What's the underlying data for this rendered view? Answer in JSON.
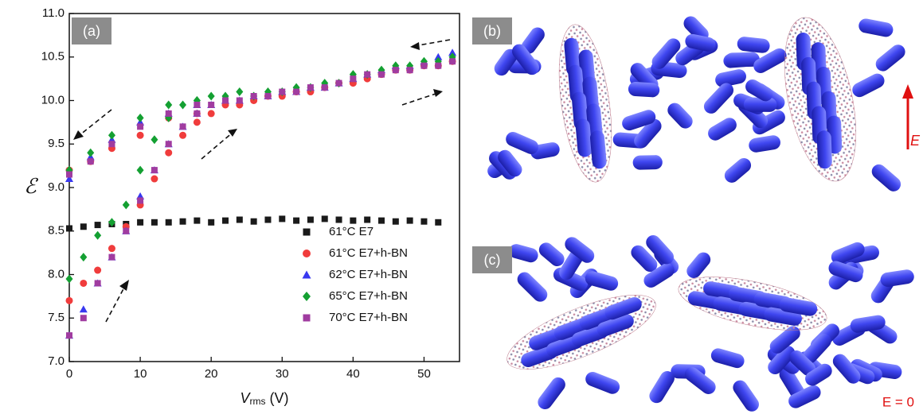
{
  "chart_data": {
    "type": "scatter",
    "y_label": "ℰ",
    "x_label": {
      "symbol": "V",
      "sub": "rms",
      "unit": " (V)"
    },
    "panel_labels": [
      "(a)",
      "(b)",
      "(c)"
    ],
    "field_labels": {
      "on": "E",
      "off": "E = 0"
    },
    "xlim": [
      0,
      55
    ],
    "xticks": [
      0,
      10,
      20,
      30,
      40,
      50
    ],
    "ylim": [
      7,
      11
    ],
    "yticks": [
      {
        "value": 7,
        "label": "7.0"
      },
      7.5,
      {
        "value": 8,
        "label": "8.0"
      },
      8.5,
      {
        "value": 9,
        "label": "9.0"
      },
      9.5,
      {
        "value": 10,
        "label": "10.0"
      },
      10.5,
      {
        "value": 11,
        "label": "11.0"
      }
    ],
    "legend": "lower right",
    "series": [
      {
        "name": "61°C E7",
        "color": "#1a1a1a",
        "marker": "square",
        "x": [
          0,
          2,
          4,
          6,
          8,
          10,
          12,
          14,
          16,
          18,
          20,
          22,
          24,
          26,
          28,
          30,
          32,
          34,
          36,
          38,
          40,
          42,
          44,
          46,
          48,
          50,
          52
        ],
        "y": [
          8.53,
          8.55,
          8.57,
          8.58,
          8.58,
          8.6,
          8.6,
          8.6,
          8.61,
          8.62,
          8.6,
          8.62,
          8.63,
          8.61,
          8.63,
          8.64,
          8.62,
          8.63,
          8.64,
          8.63,
          8.62,
          8.63,
          8.62,
          8.61,
          8.62,
          8.61,
          8.6
        ]
      },
      {
        "name": "61°C E7+h-BN",
        "color": "#f03c3c",
        "marker": "circle",
        "x": [
          0,
          2,
          4,
          6,
          8,
          10,
          12,
          14,
          16,
          18,
          20,
          24,
          28,
          32,
          36,
          40,
          44,
          48,
          52,
          54,
          50,
          46,
          42,
          38,
          34,
          30,
          26,
          22,
          18,
          14,
          10,
          6,
          3,
          0
        ],
        "y": [
          7.7,
          7.9,
          8.05,
          8.3,
          8.55,
          8.8,
          9.1,
          9.4,
          9.6,
          9.75,
          9.85,
          9.95,
          10.05,
          10.1,
          10.15,
          10.2,
          10.3,
          10.35,
          10.4,
          10.45,
          10.4,
          10.35,
          10.25,
          10.2,
          10.1,
          10.05,
          10.0,
          9.95,
          9.85,
          9.8,
          9.6,
          9.45,
          9.3,
          9.2
        ]
      },
      {
        "name": "62°C E7+h-BN",
        "color": "#3838f0",
        "marker": "triangle",
        "x": [
          0,
          2,
          4,
          6,
          8,
          10,
          12,
          14,
          16,
          18,
          20,
          24,
          28,
          32,
          36,
          40,
          44,
          48,
          52,
          54,
          50,
          46,
          42,
          38,
          34,
          30,
          26,
          22,
          18,
          14,
          10,
          6,
          3,
          0
        ],
        "y": [
          7.3,
          7.6,
          7.9,
          8.2,
          8.5,
          8.9,
          9.2,
          9.5,
          9.7,
          9.85,
          9.95,
          10.0,
          10.05,
          10.1,
          10.15,
          10.25,
          10.35,
          10.4,
          10.5,
          10.55,
          10.45,
          10.4,
          10.3,
          10.2,
          10.15,
          10.1,
          10.05,
          10.0,
          9.95,
          9.85,
          9.75,
          9.55,
          9.35,
          9.1
        ]
      },
      {
        "name": "65°C E7+h-BN",
        "color": "#14a032",
        "marker": "diamond",
        "x": [
          0,
          2,
          4,
          6,
          8,
          10,
          12,
          14,
          16,
          18,
          20,
          24,
          28,
          32,
          36,
          40,
          44,
          48,
          52,
          54,
          50,
          46,
          42,
          38,
          34,
          30,
          26,
          22,
          18,
          14,
          10,
          6,
          3,
          0
        ],
        "y": [
          7.95,
          8.2,
          8.45,
          8.6,
          8.8,
          9.2,
          9.55,
          9.8,
          9.95,
          10.0,
          10.05,
          10.1,
          10.1,
          10.15,
          10.2,
          10.3,
          10.35,
          10.4,
          10.45,
          10.5,
          10.45,
          10.4,
          10.3,
          10.2,
          10.15,
          10.1,
          10.05,
          10.05,
          10.0,
          9.95,
          9.8,
          9.6,
          9.4,
          9.2
        ]
      },
      {
        "name": "70°C E7+h-BN",
        "color": "#a03ca0",
        "marker": "square",
        "x": [
          0,
          2,
          4,
          6,
          8,
          10,
          12,
          14,
          16,
          18,
          20,
          24,
          28,
          32,
          36,
          40,
          44,
          48,
          52,
          54,
          50,
          46,
          42,
          38,
          34,
          30,
          26,
          22,
          18,
          14,
          10,
          6,
          3,
          0
        ],
        "y": [
          7.3,
          7.5,
          7.9,
          8.2,
          8.5,
          8.85,
          9.2,
          9.5,
          9.7,
          9.85,
          9.95,
          10.0,
          10.05,
          10.1,
          10.15,
          10.25,
          10.3,
          10.35,
          10.4,
          10.45,
          10.4,
          10.35,
          10.3,
          10.2,
          10.15,
          10.1,
          10.05,
          10.0,
          9.95,
          9.85,
          9.7,
          9.5,
          9.3,
          9.15
        ]
      }
    ]
  }
}
